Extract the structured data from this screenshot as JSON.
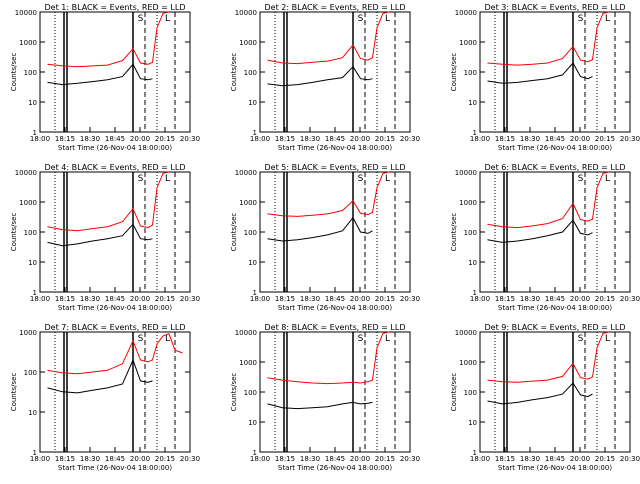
{
  "figure": {
    "colors": {
      "events": "#000000",
      "lld": "#ff0000",
      "axes": "#000000",
      "background": "#ffffff"
    },
    "xlabel": "Start Time (26-Nov-04 18:00:00)",
    "ylabel": "Counts/sec"
  },
  "chart_data": [
    {
      "type": "line",
      "title": "Det 1: BLACK = Events, RED = LLD",
      "xlabel": "Start Time (26-Nov-04 18:00:00)",
      "ylabel": "Counts/sec",
      "xticks": [
        "18:00",
        "18:15",
        "18:30",
        "18:45",
        "20:00",
        "20:15",
        "20:30"
      ],
      "yticks": [
        "1",
        "10",
        "100",
        "1000",
        "10000"
      ],
      "ylim": [
        1,
        10000
      ],
      "yscale": "log",
      "series": [
        {
          "name": "Events",
          "color": "#000000",
          "x": [
            0.05,
            0.15,
            0.25,
            0.35,
            0.45,
            0.55,
            0.62,
            0.67,
            0.72,
            0.75
          ],
          "y": [
            45,
            38,
            42,
            48,
            55,
            70,
            180,
            60,
            55,
            60
          ]
        },
        {
          "name": "LLD",
          "color": "#ff0000",
          "x": [
            0.05,
            0.15,
            0.25,
            0.35,
            0.45,
            0.55,
            0.62,
            0.67,
            0.72,
            0.75,
            0.78,
            0.82,
            0.86
          ],
          "y": [
            180,
            160,
            150,
            160,
            170,
            240,
            600,
            200,
            180,
            210,
            3000,
            9000,
            10000
          ]
        }
      ],
      "annotations": [
        "S",
        "L"
      ]
    },
    {
      "type": "line",
      "title": "Det 2: BLACK = Events, RED = LLD",
      "xlabel": "Start Time (26-Nov-04 18:00:00)",
      "ylabel": "Counts/sec",
      "xticks": [
        "18:00",
        "18:15",
        "18:30",
        "18:45",
        "20:00",
        "20:15",
        "20:30"
      ],
      "yticks": [
        "1",
        "10",
        "100",
        "1000",
        "10000"
      ],
      "ylim": [
        1,
        10000
      ],
      "yscale": "log",
      "series": [
        {
          "name": "Events",
          "color": "#000000",
          "x": [
            0.05,
            0.15,
            0.25,
            0.35,
            0.45,
            0.55,
            0.62,
            0.67,
            0.72,
            0.75
          ],
          "y": [
            40,
            35,
            38,
            45,
            55,
            65,
            150,
            60,
            55,
            60
          ]
        },
        {
          "name": "LLD",
          "color": "#ff0000",
          "x": [
            0.05,
            0.15,
            0.25,
            0.35,
            0.45,
            0.55,
            0.62,
            0.67,
            0.72,
            0.75,
            0.78,
            0.82,
            0.86
          ],
          "y": [
            250,
            200,
            190,
            210,
            230,
            300,
            800,
            280,
            250,
            300,
            3000,
            9000,
            10000
          ]
        }
      ],
      "annotations": [
        "S",
        "L"
      ]
    },
    {
      "type": "line",
      "title": "Det 3: BLACK = Events, RED = LLD",
      "xlabel": "Start Time (26-Nov-04 18:00:00)",
      "ylabel": "Counts/sec",
      "xticks": [
        "18:00",
        "18:15",
        "18:30",
        "18:45",
        "20:00",
        "20:15",
        "20:30"
      ],
      "yticks": [
        "1",
        "10",
        "100",
        "1000",
        "10000"
      ],
      "ylim": [
        1,
        10000
      ],
      "yscale": "log",
      "series": [
        {
          "name": "Events",
          "color": "#000000",
          "x": [
            0.05,
            0.15,
            0.25,
            0.35,
            0.45,
            0.55,
            0.62,
            0.67,
            0.72,
            0.75
          ],
          "y": [
            50,
            42,
            45,
            52,
            60,
            80,
            200,
            70,
            60,
            70
          ]
        },
        {
          "name": "LLD",
          "color": "#ff0000",
          "x": [
            0.05,
            0.15,
            0.25,
            0.35,
            0.45,
            0.55,
            0.62,
            0.67,
            0.72,
            0.75,
            0.78,
            0.82,
            0.86
          ],
          "y": [
            200,
            180,
            170,
            180,
            200,
            280,
            700,
            250,
            220,
            260,
            3000,
            9000,
            10000
          ]
        }
      ],
      "annotations": [
        "S",
        "L"
      ]
    },
    {
      "type": "line",
      "title": "Det 4: BLACK = Events, RED = LLD",
      "xlabel": "Start Time (26-Nov-04 18:00:00)",
      "ylabel": "Counts/sec",
      "xticks": [
        "18:00",
        "18:15",
        "18:30",
        "18:45",
        "20:00",
        "20:15",
        "20:30"
      ],
      "yticks": [
        "1",
        "10",
        "100",
        "1000",
        "10000"
      ],
      "ylim": [
        1,
        10000
      ],
      "yscale": "log",
      "series": [
        {
          "name": "Events",
          "color": "#000000",
          "x": [
            0.05,
            0.15,
            0.25,
            0.35,
            0.45,
            0.55,
            0.62,
            0.67,
            0.72,
            0.75
          ],
          "y": [
            45,
            35,
            40,
            50,
            60,
            75,
            180,
            60,
            55,
            60
          ]
        },
        {
          "name": "LLD",
          "color": "#ff0000",
          "x": [
            0.05,
            0.15,
            0.25,
            0.35,
            0.45,
            0.55,
            0.62,
            0.67,
            0.72,
            0.75,
            0.78,
            0.82,
            0.86
          ],
          "y": [
            150,
            120,
            110,
            130,
            150,
            220,
            600,
            160,
            140,
            170,
            3000,
            9000,
            10000
          ]
        }
      ],
      "annotations": [
        "S",
        "L"
      ]
    },
    {
      "type": "line",
      "title": "Det 5: BLACK = Events, RED = LLD",
      "xlabel": "Start Time (26-Nov-04 18:00:00)",
      "ylabel": "Counts/sec",
      "xticks": [
        "18:00",
        "18:15",
        "18:30",
        "18:45",
        "20:00",
        "20:15",
        "20:30"
      ],
      "yticks": [
        "1",
        "10",
        "100",
        "1000",
        "10000"
      ],
      "ylim": [
        1,
        10000
      ],
      "yscale": "log",
      "series": [
        {
          "name": "Events",
          "color": "#000000",
          "x": [
            0.05,
            0.15,
            0.25,
            0.35,
            0.45,
            0.55,
            0.62,
            0.67,
            0.72,
            0.75
          ],
          "y": [
            60,
            50,
            55,
            65,
            80,
            110,
            300,
            100,
            90,
            110
          ]
        },
        {
          "name": "LLD",
          "color": "#ff0000",
          "x": [
            0.05,
            0.15,
            0.25,
            0.35,
            0.45,
            0.55,
            0.62,
            0.67,
            0.72,
            0.75,
            0.78,
            0.82,
            0.86
          ],
          "y": [
            400,
            350,
            330,
            360,
            400,
            520,
            1100,
            420,
            380,
            450,
            3000,
            9000,
            10000
          ]
        }
      ],
      "annotations": [
        "S",
        "L"
      ]
    },
    {
      "type": "line",
      "title": "Det 6: BLACK = Events, RED = LLD",
      "xlabel": "Start Time (26-Nov-04 18:00:00)",
      "ylabel": "Counts/sec",
      "xticks": [
        "18:00",
        "18:15",
        "18:30",
        "18:45",
        "20:00",
        "20:15",
        "20:30"
      ],
      "yticks": [
        "1",
        "10",
        "100",
        "1000",
        "10000"
      ],
      "ylim": [
        1,
        10000
      ],
      "yscale": "log",
      "series": [
        {
          "name": "Events",
          "color": "#000000",
          "x": [
            0.05,
            0.15,
            0.25,
            0.35,
            0.45,
            0.55,
            0.62,
            0.67,
            0.72,
            0.75
          ],
          "y": [
            55,
            45,
            50,
            60,
            75,
            100,
            250,
            90,
            80,
            95
          ]
        },
        {
          "name": "LLD",
          "color": "#ff0000",
          "x": [
            0.05,
            0.15,
            0.25,
            0.35,
            0.45,
            0.55,
            0.62,
            0.67,
            0.72,
            0.75,
            0.78,
            0.82,
            0.86
          ],
          "y": [
            180,
            150,
            140,
            160,
            190,
            280,
            900,
            260,
            230,
            270,
            3000,
            9000,
            10000
          ]
        }
      ],
      "annotations": [
        "S",
        "L"
      ]
    },
    {
      "type": "line",
      "title": "Det 7: BLACK = Events, RED = LLD",
      "xlabel": "Start Time (26-Nov-04 18:00:00)",
      "ylabel": "Counts/sec",
      "xticks": [
        "18:00",
        "18:15",
        "18:30",
        "18:45",
        "20:00",
        "20:15",
        "20:30"
      ],
      "yticks": [
        "1",
        "10",
        "100",
        "1000"
      ],
      "ylim": [
        1,
        1000
      ],
      "yscale": "log",
      "series": [
        {
          "name": "Events",
          "color": "#000000",
          "x": [
            0.05,
            0.15,
            0.25,
            0.35,
            0.45,
            0.55,
            0.62,
            0.67,
            0.72,
            0.75
          ],
          "y": [
            40,
            32,
            30,
            35,
            40,
            50,
            200,
            60,
            55,
            60
          ]
        },
        {
          "name": "LLD",
          "color": "#ff0000",
          "x": [
            0.05,
            0.15,
            0.25,
            0.35,
            0.45,
            0.55,
            0.62,
            0.67,
            0.72,
            0.75,
            0.78,
            0.82,
            0.86,
            0.9,
            0.95
          ],
          "y": [
            110,
            95,
            90,
            100,
            110,
            160,
            600,
            200,
            180,
            200,
            500,
            800,
            900,
            350,
            300
          ]
        }
      ],
      "annotations": [
        "S",
        "L"
      ]
    },
    {
      "type": "line",
      "title": "Det 8: BLACK = Events, RED = LLD",
      "xlabel": "Start Time (26-Nov-04 18:00:00)",
      "ylabel": "Counts/sec",
      "xticks": [
        "18:00",
        "18:15",
        "18:30",
        "18:45",
        "20:00",
        "20:15",
        "20:30"
      ],
      "yticks": [
        "1",
        "10",
        "100",
        "1000",
        "10000"
      ],
      "ylim": [
        1,
        10000
      ],
      "yscale": "log",
      "series": [
        {
          "name": "Events",
          "color": "#000000",
          "x": [
            0.05,
            0.15,
            0.25,
            0.35,
            0.45,
            0.55,
            0.62,
            0.67,
            0.72,
            0.75
          ],
          "y": [
            40,
            30,
            28,
            30,
            32,
            40,
            45,
            40,
            42,
            45
          ]
        },
        {
          "name": "LLD",
          "color": "#ff0000",
          "x": [
            0.05,
            0.15,
            0.25,
            0.35,
            0.45,
            0.55,
            0.62,
            0.67,
            0.72,
            0.75,
            0.78,
            0.82,
            0.86
          ],
          "y": [
            300,
            250,
            220,
            200,
            190,
            200,
            210,
            200,
            220,
            250,
            3000,
            9000,
            10000
          ]
        }
      ],
      "annotations": [
        "S",
        "L"
      ]
    },
    {
      "type": "line",
      "title": "Det 9: BLACK = Events, RED = LLD",
      "xlabel": "Start Time (26-Nov-04 18:00:00)",
      "ylabel": "Counts/sec",
      "xticks": [
        "18:00",
        "18:15",
        "18:30",
        "18:45",
        "20:00",
        "20:15",
        "20:30"
      ],
      "yticks": [
        "1",
        "10",
        "100",
        "1000",
        "10000"
      ],
      "ylim": [
        1,
        10000
      ],
      "yscale": "log",
      "series": [
        {
          "name": "Events",
          "color": "#000000",
          "x": [
            0.05,
            0.15,
            0.25,
            0.35,
            0.45,
            0.55,
            0.62,
            0.67,
            0.72,
            0.75
          ],
          "y": [
            50,
            40,
            45,
            55,
            65,
            85,
            200,
            80,
            70,
            85
          ]
        },
        {
          "name": "LLD",
          "color": "#ff0000",
          "x": [
            0.05,
            0.15,
            0.25,
            0.35,
            0.45,
            0.55,
            0.62,
            0.67,
            0.72,
            0.75,
            0.78,
            0.82,
            0.86
          ],
          "y": [
            250,
            220,
            210,
            230,
            250,
            330,
            900,
            300,
            270,
            320,
            3000,
            9000,
            10000
          ]
        }
      ],
      "annotations": [
        "S",
        "L"
      ]
    }
  ]
}
